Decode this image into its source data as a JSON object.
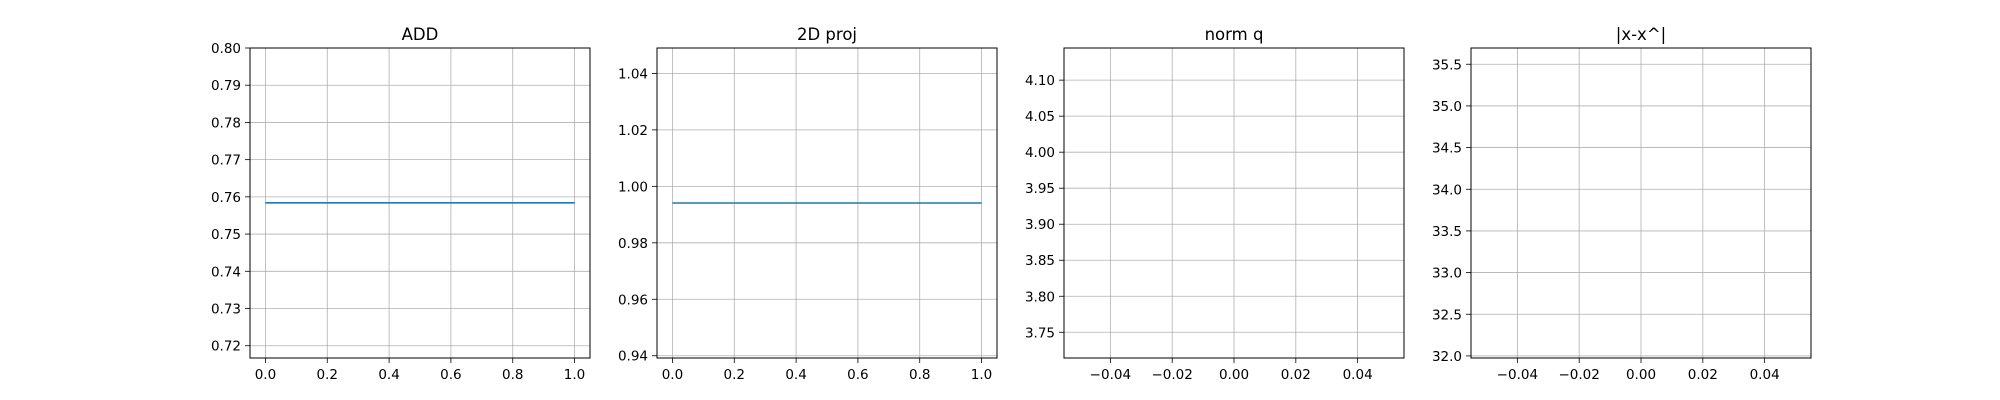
{
  "chart_data": [
    {
      "type": "line",
      "title": "ADD",
      "xlabel": "",
      "ylabel": "",
      "grid": true,
      "xlim": [
        -0.05,
        1.05
      ],
      "ylim": [
        0.7167,
        0.8
      ],
      "xticks": [
        0.0,
        0.2,
        0.4,
        0.6,
        0.8,
        1.0
      ],
      "xtick_labels": [
        "0.0",
        "0.2",
        "0.4",
        "0.6",
        "0.8",
        "1.0"
      ],
      "yticks": [
        0.72,
        0.73,
        0.74,
        0.75,
        0.76,
        0.77,
        0.78,
        0.79,
        0.8
      ],
      "ytick_labels": [
        "0.72",
        "0.73",
        "0.74",
        "0.75",
        "0.76",
        "0.77",
        "0.78",
        "0.79",
        "0.80"
      ],
      "series": [
        {
          "color": "#1f77b4",
          "x": [
            0.0,
            1.0
          ],
          "y": [
            0.7584,
            0.7584
          ]
        }
      ]
    },
    {
      "type": "line",
      "title": "2D proj",
      "xlabel": "",
      "ylabel": "",
      "grid": true,
      "xlim": [
        -0.05,
        1.05
      ],
      "ylim": [
        0.9392,
        1.049
      ],
      "xticks": [
        0.0,
        0.2,
        0.4,
        0.6,
        0.8,
        1.0
      ],
      "xtick_labels": [
        "0.0",
        "0.2",
        "0.4",
        "0.6",
        "0.8",
        "1.0"
      ],
      "yticks": [
        0.94,
        0.96,
        0.98,
        1.0,
        1.02,
        1.04
      ],
      "ytick_labels": [
        "0.94",
        "0.96",
        "0.98",
        "1.00",
        "1.02",
        "1.04"
      ],
      "series": [
        {
          "color": "#1f77b4",
          "x": [
            0.0,
            1.0
          ],
          "y": [
            0.9941,
            0.9941
          ]
        }
      ]
    },
    {
      "type": "line",
      "title": "norm q",
      "xlabel": "",
      "ylabel": "",
      "grid": true,
      "xlim": [
        -0.055,
        0.055
      ],
      "ylim": [
        3.7143,
        4.1446
      ],
      "xticks": [
        -0.04,
        -0.02,
        0.0,
        0.02,
        0.04
      ],
      "xtick_labels": [
        "−0.04",
        "−0.02",
        "0.00",
        "0.02",
        "0.04"
      ],
      "yticks": [
        3.75,
        3.8,
        3.85,
        3.9,
        3.95,
        4.0,
        4.05,
        4.1
      ],
      "ytick_labels": [
        "3.75",
        "3.80",
        "3.85",
        "3.90",
        "3.95",
        "4.00",
        "4.05",
        "4.10"
      ],
      "series": []
    },
    {
      "type": "line",
      "title": "|x-x^|",
      "xlabel": "",
      "ylabel": "",
      "grid": true,
      "xlim": [
        -0.055,
        0.055
      ],
      "ylim": [
        31.975,
        35.695
      ],
      "xticks": [
        -0.04,
        -0.02,
        0.0,
        0.02,
        0.04
      ],
      "xtick_labels": [
        "−0.04",
        "−0.02",
        "0.00",
        "0.02",
        "0.04"
      ],
      "yticks": [
        32.0,
        32.5,
        33.0,
        33.5,
        34.0,
        34.5,
        35.0,
        35.5
      ],
      "ytick_labels": [
        "32.0",
        "32.5",
        "33.0",
        "33.5",
        "34.0",
        "34.5",
        "35.0",
        "35.5"
      ],
      "series": []
    }
  ]
}
